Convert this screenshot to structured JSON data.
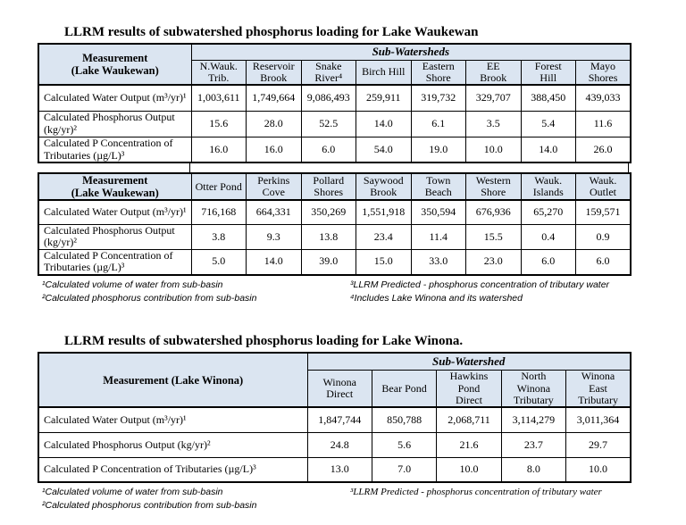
{
  "page": {
    "title_waukewan": "LLRM results of subwatershed phosphorus loading for Lake Waukewan",
    "title_winona": "LLRM results of subwatershed phosphorus loading for Lake Winona."
  },
  "colors": {
    "header_fill": "#dbe5f1",
    "border": "#000000",
    "background": "#ffffff"
  },
  "tables": [
    {
      "id": "table-1",
      "measurement_header": "Measurement\n(Lake Waukewan)",
      "group_header": "Sub-Watersheds",
      "columns": [
        "N.Wauk.\nTrib.",
        "Reservoir\nBrook",
        "Snake\nRiver⁴",
        "Birch Hill",
        "Eastern\nShore",
        "EE\nBrook",
        "Forest\nHill",
        "Mayo\nShores"
      ],
      "rows": [
        {
          "label": "Calculated Water Output (m³/yr)¹",
          "values": [
            "1,003,611",
            "1,749,664",
            "9,086,493",
            "259,911",
            "319,732",
            "329,707",
            "388,450",
            "439,033"
          ]
        },
        {
          "label": "Calculated Phosphorus Output (kg/yr)²",
          "values": [
            "15.6",
            "28.0",
            "52.5",
            "14.0",
            "6.1",
            "3.5",
            "5.4",
            "11.6"
          ]
        },
        {
          "label": "Calculated P Concentration of Tributaries (µg/L)³",
          "values": [
            "16.0",
            "16.0",
            "6.0",
            "54.0",
            "19.0",
            "10.0",
            "14.0",
            "26.0"
          ]
        }
      ]
    },
    {
      "id": "table-2",
      "measurement_header": "Measurement\n(Lake Waukewan)",
      "group_header": null,
      "columns": [
        "Otter Pond",
        "Perkins\nCove",
        "Pollard\nShores",
        "Saywood\nBrook",
        "Town\nBeach",
        "Western\nShore",
        "Wauk.\nIslands",
        "Wauk.\nOutlet"
      ],
      "rows": [
        {
          "label": "Calculated Water Output (m³/yr)¹",
          "values": [
            "716,168",
            "664,331",
            "350,269",
            "1,551,918",
            "350,594",
            "676,936",
            "65,270",
            "159,571"
          ]
        },
        {
          "label": "Calculated Phosphorus Output (kg/yr)²",
          "values": [
            "3.8",
            "9.3",
            "13.8",
            "23.4",
            "11.4",
            "15.5",
            "0.4",
            "0.9"
          ]
        },
        {
          "label": "Calculated P Concentration of Tributaries (µg/L)³",
          "values": [
            "5.0",
            "14.0",
            "39.0",
            "15.0",
            "33.0",
            "23.0",
            "6.0",
            "6.0"
          ]
        }
      ]
    },
    {
      "id": "table-3",
      "measurement_header": "Measurement (Lake Winona)",
      "group_header": "Sub-Watershed",
      "columns": [
        "Winona\nDirect",
        "Bear Pond",
        "Hawkins\nPond\nDirect",
        "North\nWinona\nTributary",
        "Winona\nEast\nTributary"
      ],
      "rows": [
        {
          "label": "Calculated Water Output (m³/yr)¹",
          "values": [
            "1,847,744",
            "850,788",
            "2,068,711",
            "3,114,279",
            "3,011,364"
          ]
        },
        {
          "label": "Calculated Phosphorus Output (kg/yr)²",
          "values": [
            "24.8",
            "5.6",
            "21.6",
            "23.7",
            "29.7"
          ]
        },
        {
          "label": "Calculated P Concentration of Tributaries (µg/L)³",
          "values": [
            "13.0",
            "7.0",
            "10.0",
            "8.0",
            "10.0"
          ]
        }
      ]
    }
  ],
  "footnotes_waukewan": {
    "left": [
      "¹Calculated volume of water from sub-basin",
      "²Calculated phosphorus contribution from sub-basin"
    ],
    "right": [
      "³LLRM Predicted - phosphorus concentration of tributary water",
      "⁴Includes Lake Winona and its watershed"
    ]
  },
  "footnotes_winona": {
    "left": [
      "¹Calculated volume of water from sub-basin",
      "²Calculated phosphorus contribution from sub-basin"
    ],
    "right": [
      "³LLRM Predicted - phosphorus concentration of tributary water"
    ]
  }
}
